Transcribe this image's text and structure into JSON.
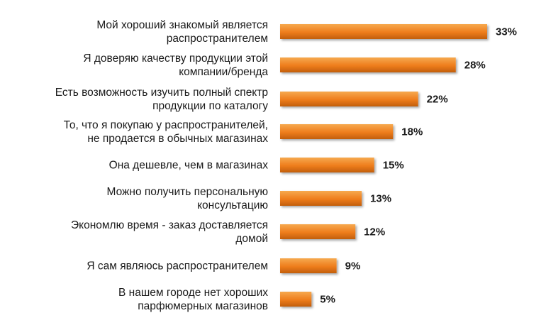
{
  "chart_data": {
    "type": "bar",
    "orientation": "horizontal",
    "categories": [
      [
        "Мой хороший знакомый является",
        "распространителем"
      ],
      [
        "Я доверяю качеству продукции этой",
        "компании/бренда"
      ],
      [
        "Есть возможность изучить полный спектр",
        "продукции  по каталогу"
      ],
      [
        "То, что я покупаю у распространителей,",
        "не продается в обычных магазинах"
      ],
      [
        "Она дешевле, чем в магазинах"
      ],
      [
        "Можно получить персональную",
        "консультацию"
      ],
      [
        "Экономлю время - заказ доставляется",
        "домой"
      ],
      [
        "Я сам являюсь распространителем"
      ],
      [
        "В нашем городе нет хороших",
        "парфюмерных магазинов"
      ]
    ],
    "values": [
      33,
      28,
      22,
      18,
      15,
      13,
      12,
      9,
      5
    ],
    "value_labels": [
      "33%",
      "28%",
      "22%",
      "18%",
      "15%",
      "13%",
      "12%",
      "9%",
      "5%"
    ],
    "xlim": [
      0,
      35
    ],
    "grid": false,
    "legend": "none",
    "colors": {
      "bar_top": "#f6a94f",
      "bar_mid": "#ee7d1c",
      "bar_bottom": "#c25e0c"
    }
  }
}
